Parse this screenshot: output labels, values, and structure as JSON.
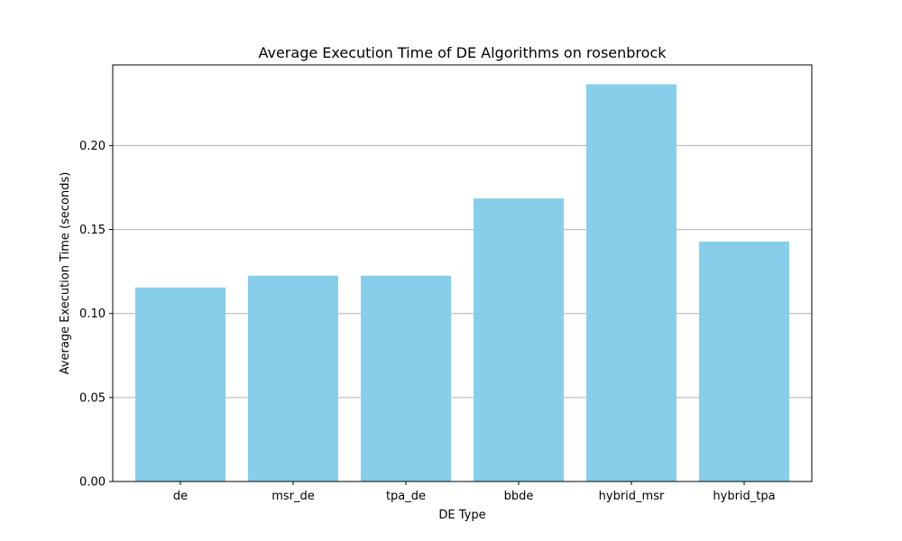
{
  "chart_data": {
    "type": "bar",
    "title": "Average Execution Time of DE Algorithms on rosenbrock",
    "xlabel": "DE Type",
    "ylabel": "Average Execution Time (seconds)",
    "categories": [
      "de",
      "msr_de",
      "tpa_de",
      "bbde",
      "hybrid_msr",
      "hybrid_tpa"
    ],
    "values": [
      0.1155,
      0.1225,
      0.1225,
      0.1685,
      0.2365,
      0.1428
    ],
    "ylim": [
      0,
      0.248
    ],
    "yticks": [
      0.0,
      0.05,
      0.1,
      0.15,
      0.2
    ],
    "ytick_labels": [
      "0.00",
      "0.05",
      "0.10",
      "0.15",
      "0.20"
    ],
    "grid": "horizontal",
    "legend": "none",
    "colors": {
      "bar": "#87ceeb",
      "grid": "#b0b0b0",
      "axis": "#000000"
    }
  }
}
